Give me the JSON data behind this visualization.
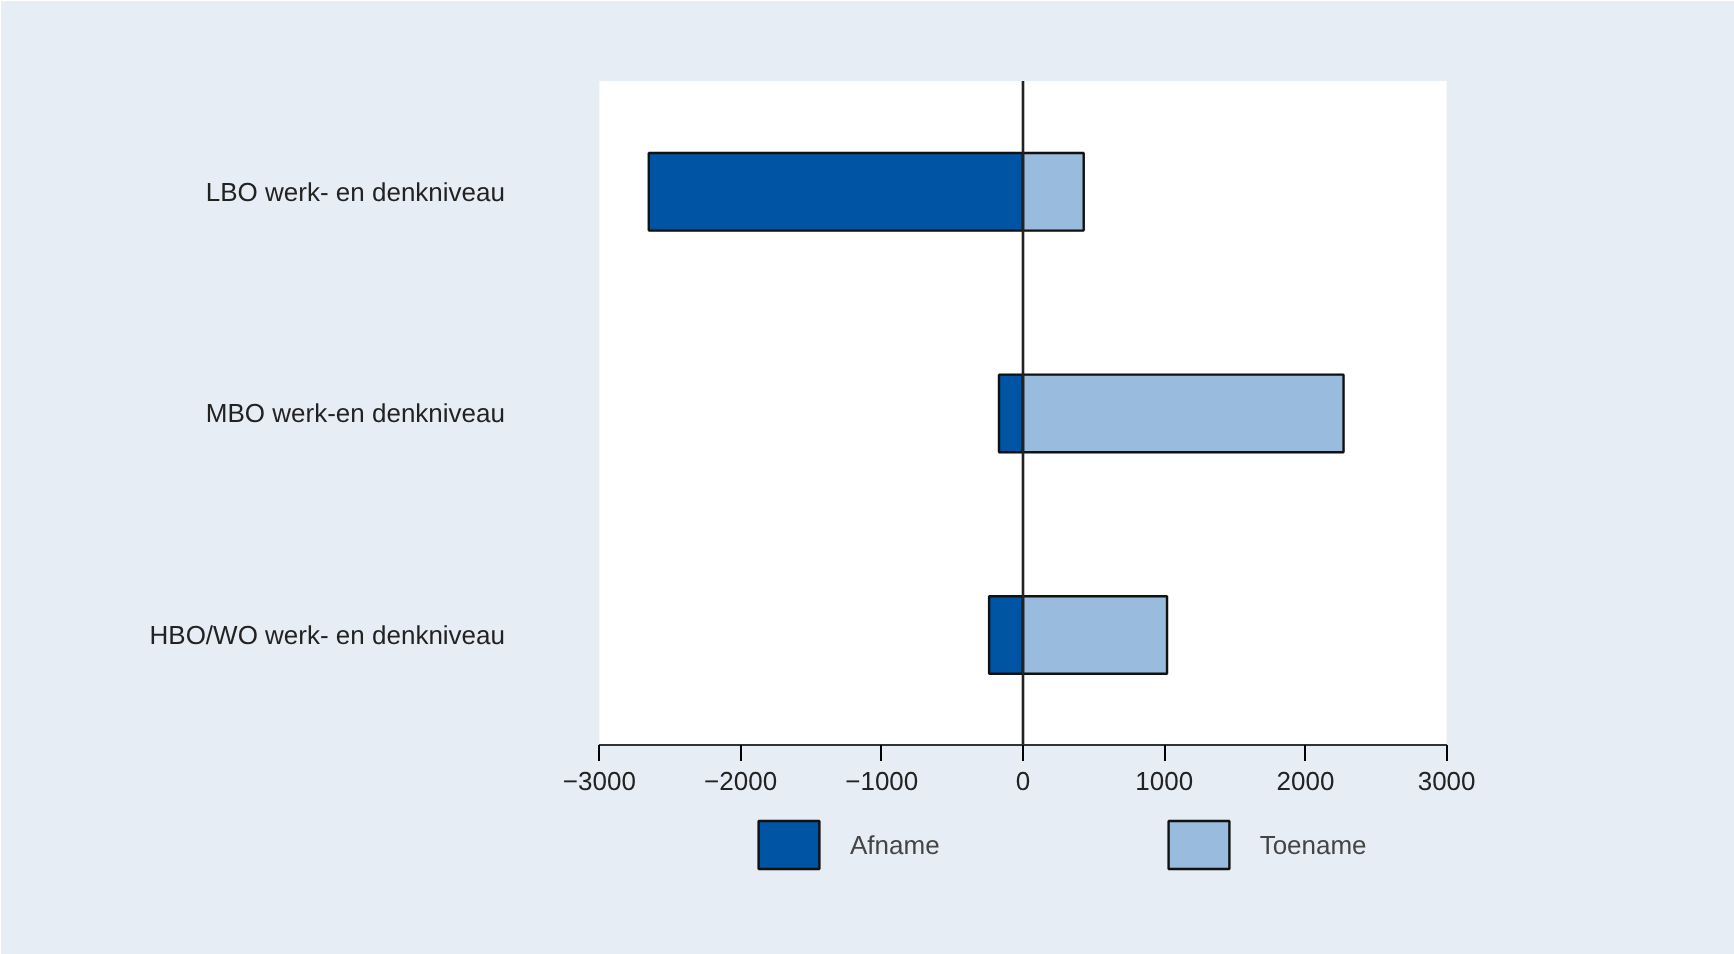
{
  "chart_data": {
    "type": "bar",
    "orientation": "horizontal",
    "categories": [
      "LBO werk- en denkniveau",
      "MBO werk-en denkniveau",
      "HBO/WO werk- en denkniveau"
    ],
    "series": [
      {
        "name": "Afname",
        "color": "#0054a4",
        "values": [
          -2650,
          -170,
          -240
        ]
      },
      {
        "name": "Toename",
        "color": "#99bbdd",
        "values": [
          430,
          2270,
          1020
        ]
      }
    ],
    "xlim": [
      -3000,
      3000
    ],
    "xticks": [
      -3000,
      -2000,
      -1000,
      0,
      1000,
      2000,
      3000
    ],
    "ref_lines": [
      {
        "axis": "x",
        "value": 0,
        "color": "#222222"
      }
    ],
    "stacked": true,
    "grid": false,
    "legend": "bottom"
  }
}
